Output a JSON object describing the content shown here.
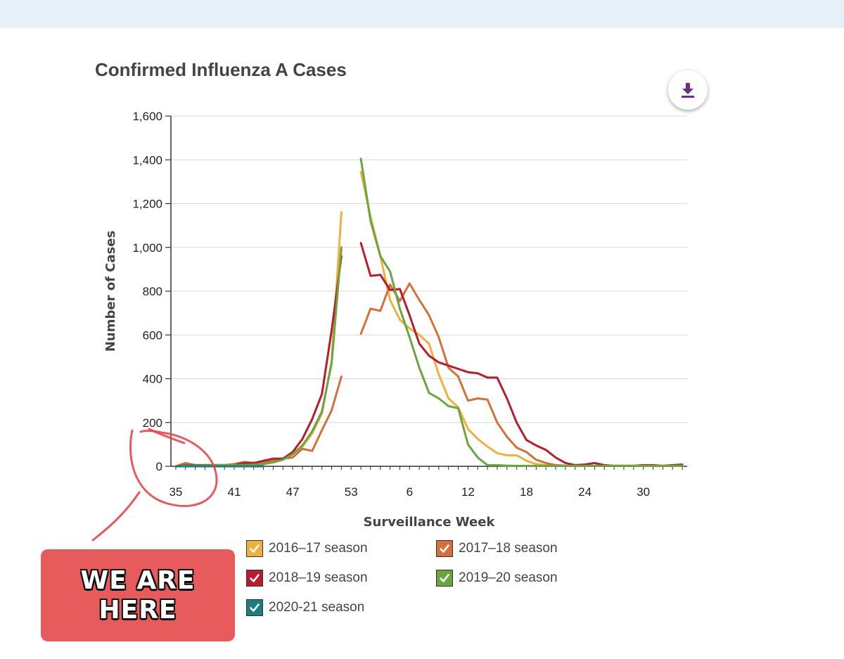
{
  "chart_title": "Confirmed Influenza A Cases",
  "download_icon": "download-icon",
  "annotation": {
    "text_line1": "WE ARE",
    "text_line2": "HERE",
    "circle_color": "#e8474b",
    "sticker_color": "#e85b5c"
  },
  "chart_data": {
    "type": "line",
    "title": "Confirmed Influenza A Cases",
    "xlabel": "Surveillance Week",
    "ylabel": "Number of Cases",
    "ylim": [
      0,
      1600
    ],
    "yticks": [
      0,
      200,
      400,
      600,
      800,
      1000,
      1200,
      1400,
      1600
    ],
    "ytick_labels": [
      "0",
      "200",
      "400",
      "600",
      "800",
      "1,000",
      "1,200",
      "1,400",
      "1,600"
    ],
    "x_tick_labels": [
      "35",
      "41",
      "47",
      "53",
      "6",
      "12",
      "18",
      "24",
      "30"
    ],
    "x_sequence_note": "weeks 35-52 then 53 then 1-34",
    "grid": true,
    "legend_placement": "bottom",
    "series": [
      {
        "name": "2016–17 season",
        "color": "#f0b03c",
        "segments": [
          [
            [
              35,
              0
            ],
            [
              36,
              5
            ],
            [
              37,
              3
            ],
            [
              38,
              5
            ],
            [
              39,
              5
            ],
            [
              40,
              5
            ],
            [
              41,
              8
            ],
            [
              42,
              12
            ],
            [
              43,
              12
            ],
            [
              44,
              18
            ],
            [
              45,
              25
            ],
            [
              46,
              35
            ],
            [
              47,
              55
            ],
            [
              48,
              90
            ],
            [
              49,
              150
            ],
            [
              50,
              240
            ],
            [
              51,
              480
            ],
            [
              52,
              1160
            ]
          ],
          [
            [
              54,
              1345
            ],
            [
              55,
              1140
            ],
            [
              56,
              960
            ],
            [
              57,
              760
            ],
            [
              58,
              670
            ],
            [
              59,
              630
            ],
            [
              60,
              600
            ],
            [
              61,
              560
            ],
            [
              62,
              420
            ],
            [
              63,
              310
            ],
            [
              64,
              270
            ],
            [
              65,
              170
            ],
            [
              66,
              125
            ],
            [
              67,
              90
            ],
            [
              68,
              60
            ],
            [
              69,
              50
            ],
            [
              70,
              50
            ],
            [
              71,
              25
            ],
            [
              72,
              10
            ],
            [
              73,
              5
            ],
            [
              74,
              3
            ],
            [
              75,
              2
            ],
            [
              76,
              2
            ],
            [
              77,
              2
            ],
            [
              78,
              2
            ],
            [
              79,
              2
            ],
            [
              80,
              2
            ],
            [
              81,
              2
            ],
            [
              82,
              2
            ],
            [
              83,
              2
            ],
            [
              84,
              2
            ],
            [
              85,
              2
            ],
            [
              86,
              2
            ],
            [
              87,
              5
            ]
          ]
        ]
      },
      {
        "name": "2017–18 season",
        "color": "#d4713a",
        "segments": [
          [
            [
              35,
              0
            ],
            [
              36,
              15
            ],
            [
              37,
              5
            ],
            [
              38,
              5
            ],
            [
              39,
              5
            ],
            [
              40,
              5
            ],
            [
              41,
              10
            ],
            [
              42,
              20
            ],
            [
              43,
              15
            ],
            [
              44,
              20
            ],
            [
              45,
              25
            ],
            [
              46,
              35
            ],
            [
              47,
              40
            ],
            [
              48,
              80
            ],
            [
              49,
              70
            ],
            [
              50,
              165
            ],
            [
              51,
              255
            ],
            [
              52,
              410
            ]
          ],
          [
            [
              54,
              605
            ],
            [
              55,
              720
            ],
            [
              56,
              710
            ],
            [
              57,
              830
            ],
            [
              58,
              755
            ],
            [
              59,
              835
            ],
            [
              60,
              760
            ],
            [
              61,
              690
            ],
            [
              62,
              590
            ],
            [
              63,
              450
            ],
            [
              64,
              410
            ],
            [
              65,
              300
            ],
            [
              66,
              310
            ],
            [
              67,
              305
            ],
            [
              68,
              200
            ],
            [
              69,
              135
            ],
            [
              70,
              85
            ],
            [
              71,
              65
            ],
            [
              72,
              30
            ],
            [
              73,
              15
            ],
            [
              74,
              5
            ],
            [
              75,
              3
            ],
            [
              76,
              2
            ],
            [
              77,
              2
            ],
            [
              78,
              2
            ],
            [
              79,
              2
            ],
            [
              80,
              2
            ],
            [
              81,
              2
            ],
            [
              82,
              2
            ],
            [
              83,
              2
            ],
            [
              84,
              2
            ],
            [
              85,
              2
            ],
            [
              86,
              2
            ],
            [
              87,
              3
            ]
          ]
        ]
      },
      {
        "name": "2018–19 season",
        "color": "#b81c2e",
        "segments": [
          [
            [
              35,
              0
            ],
            [
              36,
              5
            ],
            [
              37,
              5
            ],
            [
              38,
              5
            ],
            [
              39,
              5
            ],
            [
              40,
              5
            ],
            [
              41,
              5
            ],
            [
              42,
              15
            ],
            [
              43,
              15
            ],
            [
              44,
              25
            ],
            [
              45,
              35
            ],
            [
              46,
              35
            ],
            [
              47,
              65
            ],
            [
              48,
              125
            ],
            [
              49,
              215
            ],
            [
              50,
              330
            ],
            [
              51,
              620
            ],
            [
              52,
              960
            ]
          ],
          [
            [
              54,
              1020
            ],
            [
              55,
              870
            ],
            [
              56,
              875
            ],
            [
              57,
              805
            ],
            [
              58,
              810
            ],
            [
              59,
              690
            ],
            [
              60,
              560
            ],
            [
              61,
              505
            ],
            [
              62,
              475
            ],
            [
              63,
              460
            ],
            [
              64,
              445
            ],
            [
              65,
              430
            ],
            [
              66,
              425
            ],
            [
              67,
              405
            ],
            [
              68,
              405
            ],
            [
              69,
              310
            ],
            [
              70,
              200
            ],
            [
              71,
              120
            ],
            [
              72,
              95
            ],
            [
              73,
              75
            ],
            [
              74,
              40
            ],
            [
              75,
              15
            ],
            [
              76,
              5
            ],
            [
              77,
              8
            ],
            [
              78,
              15
            ],
            [
              79,
              5
            ],
            [
              80,
              2
            ],
            [
              81,
              2
            ],
            [
              82,
              2
            ],
            [
              83,
              5
            ],
            [
              84,
              5
            ],
            [
              85,
              2
            ],
            [
              86,
              5
            ],
            [
              87,
              8
            ]
          ]
        ]
      },
      {
        "name": "2019–20 season",
        "color": "#6aa53d",
        "segments": [
          [
            [
              35,
              0
            ],
            [
              36,
              3
            ],
            [
              37,
              3
            ],
            [
              38,
              3
            ],
            [
              39,
              5
            ],
            [
              40,
              5
            ],
            [
              41,
              5
            ],
            [
              42,
              5
            ],
            [
              43,
              8
            ],
            [
              44,
              10
            ],
            [
              45,
              18
            ],
            [
              46,
              30
            ],
            [
              47,
              55
            ],
            [
              48,
              95
            ],
            [
              49,
              160
            ],
            [
              50,
              250
            ],
            [
              51,
              470
            ],
            [
              52,
              1000
            ]
          ],
          [
            [
              54,
              1405
            ],
            [
              55,
              1120
            ],
            [
              56,
              960
            ],
            [
              57,
              890
            ],
            [
              58,
              720
            ],
            [
              59,
              590
            ],
            [
              60,
              450
            ],
            [
              61,
              335
            ],
            [
              62,
              310
            ],
            [
              63,
              275
            ],
            [
              64,
              265
            ],
            [
              65,
              100
            ],
            [
              66,
              40
            ],
            [
              67,
              5
            ],
            [
              68,
              5
            ],
            [
              69,
              3
            ],
            [
              70,
              2
            ],
            [
              71,
              2
            ],
            [
              72,
              2
            ],
            [
              73,
              2
            ],
            [
              74,
              2
            ],
            [
              75,
              2
            ],
            [
              76,
              2
            ],
            [
              77,
              2
            ],
            [
              78,
              2
            ],
            [
              79,
              2
            ],
            [
              80,
              2
            ],
            [
              81,
              2
            ],
            [
              82,
              2
            ],
            [
              83,
              2
            ],
            [
              84,
              2
            ],
            [
              85,
              2
            ],
            [
              86,
              2
            ],
            [
              87,
              3
            ]
          ]
        ]
      },
      {
        "name": "2020-21 season",
        "color": "#1a7d7f",
        "segments": [
          [
            [
              35,
              0
            ],
            [
              36,
              0
            ],
            [
              37,
              0
            ],
            [
              38,
              0
            ],
            [
              39,
              0
            ],
            [
              40,
              0
            ],
            [
              41,
              0
            ],
            [
              42,
              0
            ],
            [
              43,
              0
            ],
            [
              44,
              0
            ]
          ]
        ]
      }
    ]
  },
  "legend": {
    "items": [
      {
        "label": "2016–17 season",
        "color": "#f0b03c"
      },
      {
        "label": "2017–18 season",
        "color": "#d4713a"
      },
      {
        "label": "2018–19 season",
        "color": "#b81c2e"
      },
      {
        "label": "2019–20 season",
        "color": "#6aa53d"
      },
      {
        "label": "2020-21 season",
        "color": "#1a7d7f"
      }
    ]
  }
}
